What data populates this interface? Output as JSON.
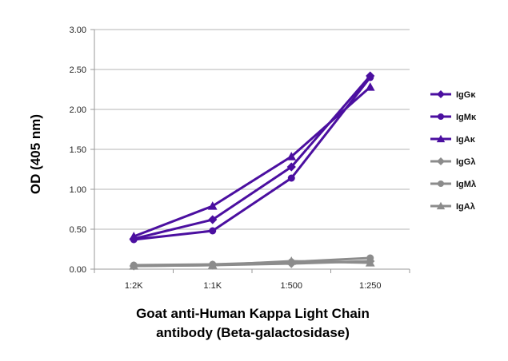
{
  "chart_data": {
    "type": "line",
    "categories": [
      "1:2K",
      "1:1K",
      "1:500",
      "1:250"
    ],
    "ylabel": "OD (405 nm)",
    "xlabel_lines": [
      "Goat anti-Human Kappa Light Chain",
      "antibody (Beta-galactosidase)"
    ],
    "ylim": [
      0,
      3.0
    ],
    "yticks": [
      "0.00",
      "0.50",
      "1.00",
      "1.50",
      "2.00",
      "2.50",
      "3.00"
    ],
    "grid": true,
    "legend_position": "right",
    "series": [
      {
        "name": "IgGκ",
        "color": "#4b0fa0",
        "marker": "diamond",
        "values": [
          0.38,
          0.62,
          1.28,
          2.42
        ]
      },
      {
        "name": "IgMκ",
        "color": "#4b0fa0",
        "marker": "circle",
        "values": [
          0.37,
          0.48,
          1.14,
          2.4
        ]
      },
      {
        "name": "IgAκ",
        "color": "#4b0fa0",
        "marker": "triangle",
        "values": [
          0.41,
          0.79,
          1.41,
          2.28
        ]
      },
      {
        "name": "IgGλ",
        "color": "#8c8c8c",
        "marker": "diamond",
        "values": [
          0.04,
          0.05,
          0.07,
          0.1
        ]
      },
      {
        "name": "IgMλ",
        "color": "#8c8c8c",
        "marker": "circle",
        "values": [
          0.05,
          0.06,
          0.09,
          0.14
        ]
      },
      {
        "name": "IgAλ",
        "color": "#8c8c8c",
        "marker": "triangle",
        "values": [
          0.04,
          0.05,
          0.1,
          0.08
        ]
      }
    ]
  }
}
